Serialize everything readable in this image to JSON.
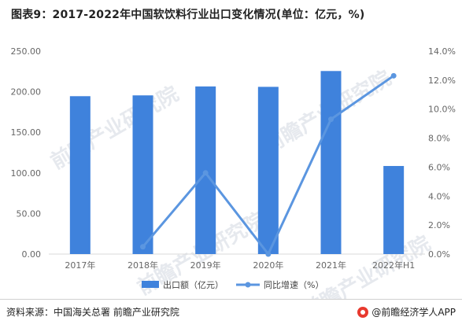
{
  "title": "图表9：2017-2022年中国软饮料行业出口变化情况(单位：亿元，%)",
  "source": "资料来源：中国海关总署 前瞻产业研究院",
  "brand": "@前瞻经济学人APP",
  "watermark": "前瞻产业研究院",
  "colors": {
    "bar": "#3f82dc",
    "line": "#5b96e0",
    "axis": "#d9d9d9",
    "tick": "#666666"
  },
  "chart_data": {
    "type": "bar+line",
    "categories": [
      "2017年",
      "2018年",
      "2019年",
      "2020年",
      "2021年",
      "2022年H1"
    ],
    "series": [
      {
        "name": "出口额（亿元）",
        "type": "bar",
        "axis": "left",
        "values": [
          194.5,
          195.5,
          206.5,
          206.0,
          225.5,
          108.5
        ]
      },
      {
        "name": "同比增速（%）",
        "type": "line",
        "axis": "right",
        "values": [
          null,
          0.5,
          5.6,
          0.0,
          9.3,
          12.3
        ]
      }
    ],
    "y_left": {
      "min": 0,
      "max": 250,
      "ticks": [
        "0.00",
        "50.00",
        "100.00",
        "150.00",
        "200.00",
        "250.00"
      ]
    },
    "y_right": {
      "min": 0,
      "max": 14,
      "ticks": [
        "0.0%",
        "2.0%",
        "4.0%",
        "6.0%",
        "8.0%",
        "10.0%",
        "12.0%",
        "14.0%"
      ]
    },
    "legend_position": "bottom-center",
    "grid": false
  }
}
